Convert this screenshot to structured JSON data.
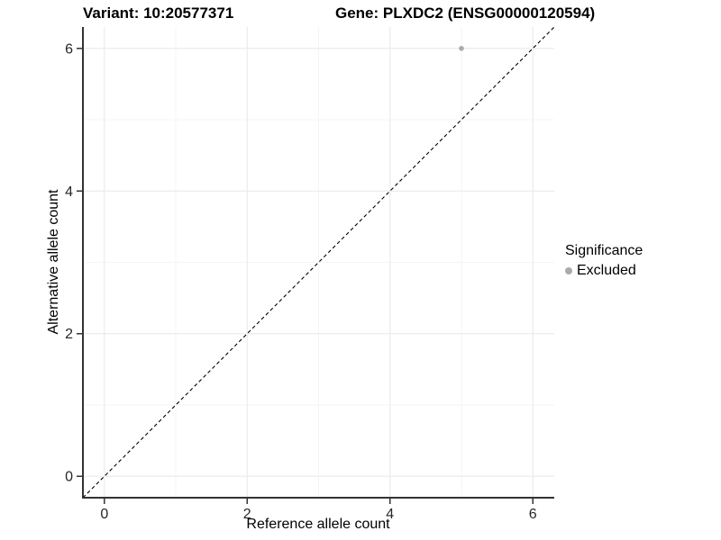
{
  "titles": {
    "variant": "Variant: 10:20577371",
    "gene": "Gene: PLXDC2 (ENSG00000120594)"
  },
  "chart_data": {
    "type": "scatter",
    "xlabel": "Reference allele count",
    "ylabel": "Alternative allele count",
    "xlim": [
      -0.3,
      6.3
    ],
    "ylim": [
      -0.3,
      6.3
    ],
    "x_ticks": [
      0,
      2,
      4,
      6
    ],
    "y_ticks": [
      0,
      2,
      4,
      6
    ],
    "x_minor_ticks": [
      1,
      3,
      5
    ],
    "y_minor_ticks": [
      1,
      3,
      5
    ],
    "grid": true,
    "identity_line": {
      "style": "dashed",
      "from": [
        -0.3,
        -0.3
      ],
      "to": [
        6.3,
        6.3
      ],
      "color": "#000000"
    },
    "points": [
      {
        "x": 5,
        "y": 6,
        "significance": "Excluded",
        "color": "#ABABAB"
      }
    ],
    "legend": {
      "title": "Significance",
      "position": "right",
      "items": [
        {
          "label": "Excluded",
          "color": "#ABABAB"
        }
      ]
    },
    "colors": {
      "grid_major": "#EBEBEB",
      "grid_minor": "#F5F5F5",
      "axis_line": "#333333",
      "tick_text": "#262626"
    }
  }
}
